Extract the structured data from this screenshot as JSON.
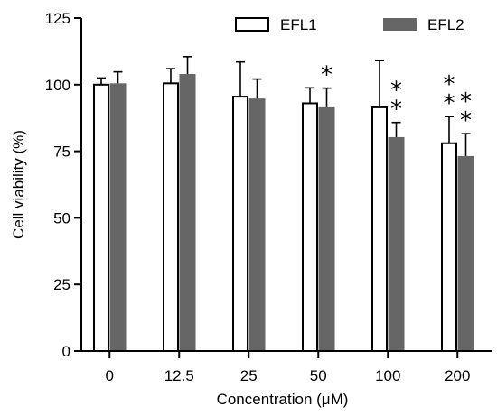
{
  "colors": {
    "series1_fill": "#ffffff",
    "series1_stroke": "#000000",
    "series2_fill": "#666666",
    "axis": "#000000"
  },
  "chart_data": {
    "type": "bar",
    "xlabel": "Concentration (μM)",
    "ylabel": "Cell viability (%)",
    "ylim": [
      0,
      125
    ],
    "yticks": [
      "0",
      "25",
      "50",
      "75",
      "100",
      "125"
    ],
    "categories": [
      "0",
      "12.5",
      "25",
      "50",
      "100",
      "200"
    ],
    "legend_position": "top-right",
    "grid": false,
    "series": [
      {
        "name": "EFL1",
        "values": [
          100,
          100.5,
          95.5,
          93,
          91.5,
          78
        ],
        "errors": [
          2.5,
          5.5,
          13,
          5.8,
          17.5,
          10
        ],
        "significance": [
          "",
          "",
          "",
          "",
          "",
          "**"
        ]
      },
      {
        "name": "EFL2",
        "values": [
          100.5,
          104,
          94.8,
          91.5,
          80.3,
          73.2
        ],
        "errors": [
          4.3,
          6.5,
          7.3,
          7.2,
          5.5,
          8.4
        ],
        "significance": [
          "",
          "",
          "",
          "*",
          "**",
          "**"
        ]
      }
    ]
  }
}
